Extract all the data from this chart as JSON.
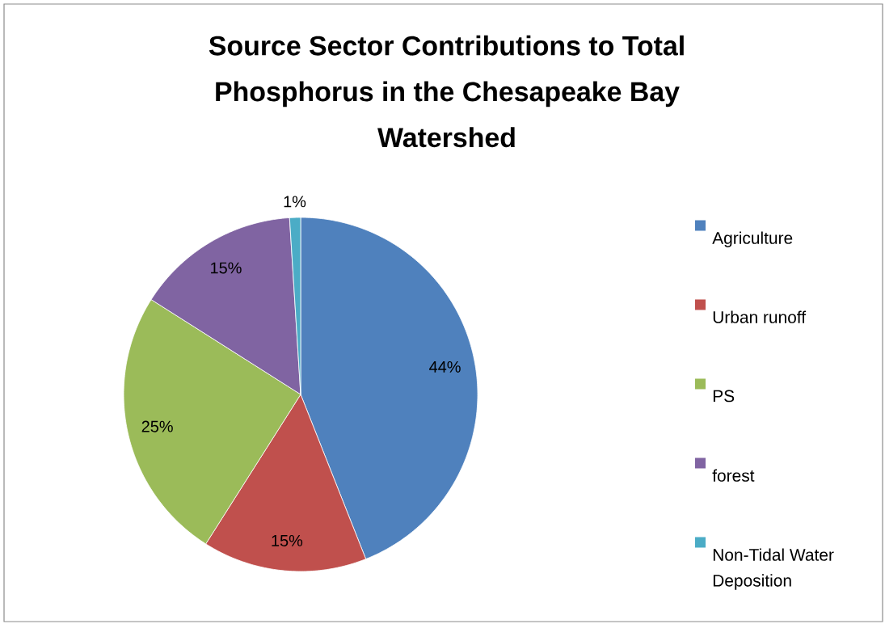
{
  "chart_data": {
    "type": "pie",
    "title": "Source Sector Contributions to Total Phosphorus in the Chesapeake Bay Watershed",
    "categories": [
      "Agriculture",
      "Urban runoff",
      "PS",
      "forest",
      "Non-Tidal Water Deposition"
    ],
    "values": [
      44,
      15,
      25,
      15,
      1
    ],
    "colors": [
      "#4f81bd",
      "#c0504d",
      "#9bbb59",
      "#8064a2",
      "#4bacc6"
    ],
    "value_labels": [
      "44%",
      "15%",
      "25%",
      "15%",
      "1%"
    ],
    "legend": "right"
  }
}
